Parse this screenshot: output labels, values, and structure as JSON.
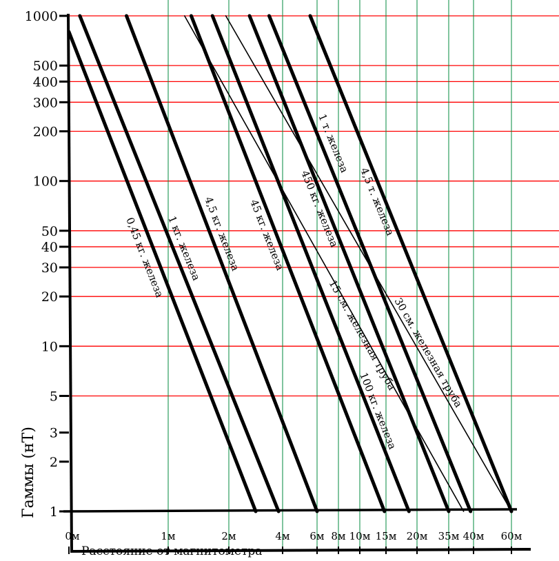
{
  "chart_data": {
    "type": "line",
    "title": "",
    "xlabel": "Расстояние от магнитометра",
    "ylabel": "Гаммы (нТ)",
    "yscale": "log",
    "ylim": [
      1,
      1000
    ],
    "y_ticks": [
      1000,
      500,
      400,
      300,
      200,
      100,
      50,
      40,
      30,
      20,
      10,
      5,
      3,
      2,
      1
    ],
    "y_tick_labels": [
      "1000",
      "500",
      "400",
      "300",
      "200",
      "100",
      "50",
      "40",
      "30",
      "20",
      "10",
      "5",
      "3",
      "2",
      "1"
    ],
    "y_gridlines": [
      1000,
      500,
      400,
      300,
      200,
      100,
      50,
      40,
      30,
      20,
      10,
      5
    ],
    "x_ticks": [
      0,
      1,
      2,
      4,
      6,
      8,
      10,
      15,
      20,
      35,
      40,
      60
    ],
    "x_tick_labels": [
      "0м",
      "1м",
      "2м",
      "4м",
      "6м",
      "8м",
      "10м",
      "15м",
      "20м",
      "35м",
      "40м",
      "60м"
    ],
    "grid": true,
    "colors": {
      "hgrid": "#ff0000",
      "vgrid": "#008a3c",
      "line": "#000000"
    },
    "series": [
      {
        "name": "0,45 кг. железа",
        "weight": "thick",
        "points": [
          [
            0,
            800
          ],
          [
            3.0,
            1
          ]
        ]
      },
      {
        "name": "1 кг. железа",
        "weight": "thick",
        "points": [
          [
            0.11,
            1000
          ],
          [
            3.85,
            1
          ]
        ]
      },
      {
        "name": "4,5 кг. железа",
        "weight": "thick",
        "points": [
          [
            0.58,
            1000
          ],
          [
            6,
            1
          ]
        ]
      },
      {
        "name": "45 кг. железа",
        "weight": "thick",
        "points": [
          [
            1.38,
            1000
          ],
          [
            14.7,
            1
          ]
        ]
      },
      {
        "name": "100 кг. железа",
        "weight": "thick",
        "points": [
          [
            1.73,
            1000
          ],
          [
            18.7,
            1
          ]
        ]
      },
      {
        "name": "450 кг. железа",
        "weight": "thick",
        "points": [
          [
            2.77,
            1000
          ],
          [
            35,
            1
          ]
        ]
      },
      {
        "name": "1 т. железа",
        "weight": "thick",
        "points": [
          [
            3.5,
            1000
          ],
          [
            39.4,
            1
          ]
        ]
      },
      {
        "name": "4,5 т. железа",
        "weight": "thick",
        "points": [
          [
            5.6,
            1000
          ],
          [
            60,
            1
          ]
        ]
      },
      {
        "name": "15 см. железная труба",
        "weight": "thin",
        "points": [
          [
            1.27,
            1000
          ],
          [
            38,
            1
          ]
        ]
      },
      {
        "name": "30 см. железная труба",
        "weight": "thin",
        "points": [
          [
            1.95,
            1000
          ],
          [
            60,
            1
          ]
        ]
      }
    ]
  }
}
